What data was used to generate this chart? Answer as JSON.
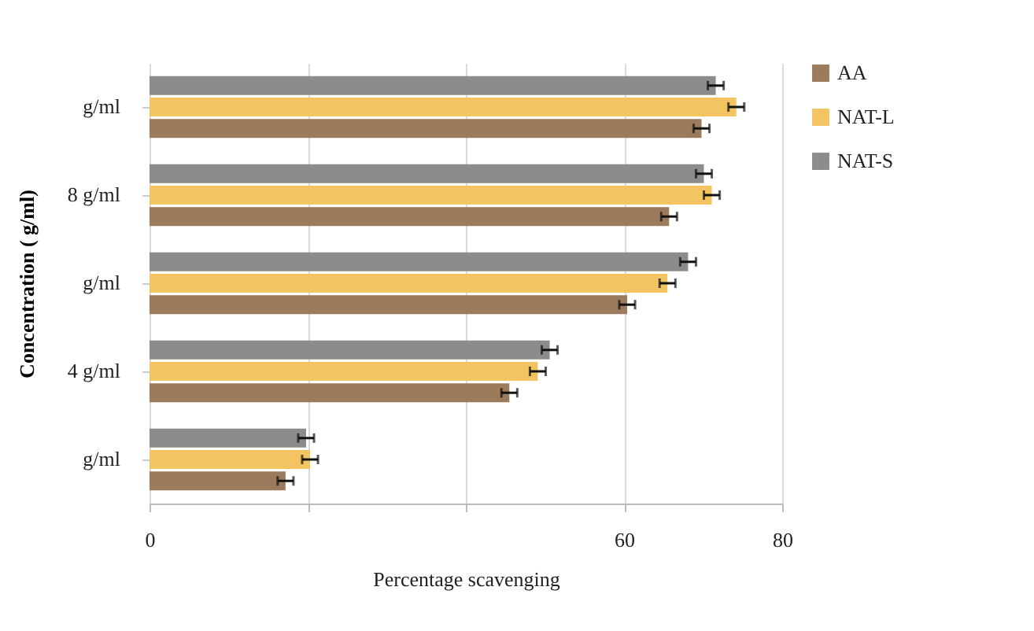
{
  "chart_data": {
    "type": "bar",
    "orientation": "horizontal",
    "xlabel": "Percentage scavenging",
    "ylabel": "Concentration ( g/ml)",
    "categories": [
      "g/ml",
      "8   g/ml",
      "g/ml",
      "4   g/ml",
      "g/ml"
    ],
    "series": [
      {
        "name": "AA",
        "color": "#9c7a5c",
        "values": [
          69.8,
          65.7,
          60.4,
          45.5,
          17.2
        ],
        "errors": [
          1,
          1,
          1,
          1,
          1
        ]
      },
      {
        "name": "NAT-L",
        "color": "#f2c462",
        "values": [
          74.2,
          71.1,
          65.5,
          49.1,
          20.3
        ],
        "errors": [
          1,
          1,
          1,
          1,
          1
        ]
      },
      {
        "name": "NAT-S",
        "color": "#8c8c8c",
        "values": [
          71.6,
          70.1,
          68.1,
          50.6,
          19.8
        ],
        "errors": [
          1,
          1,
          1,
          1,
          1
        ]
      }
    ],
    "xlim": [
      0,
      80
    ],
    "xticks": [
      0,
      {
        "value": 20,
        "label": null
      },
      {
        "value": 40,
        "label": null
      },
      60,
      80
    ],
    "grid": "x",
    "legend": "right"
  }
}
